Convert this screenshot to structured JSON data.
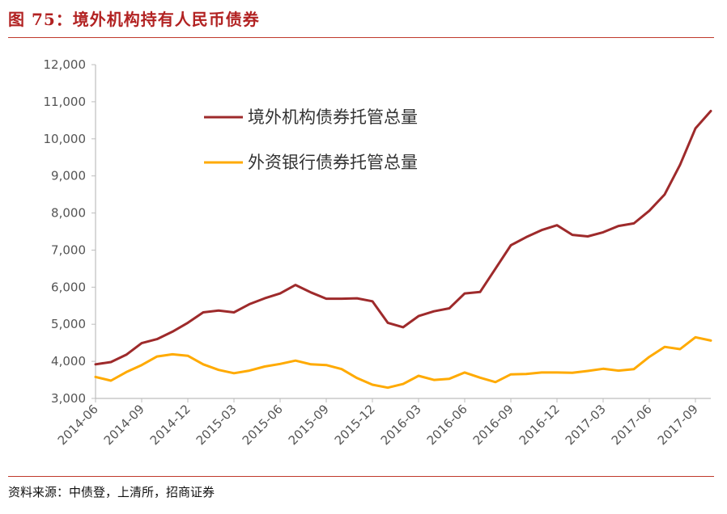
{
  "header": {
    "title": "图 75：境外机构持有人民币债券"
  },
  "footer": {
    "source": "资料来源：中债登，上清所，招商证券"
  },
  "colors": {
    "series1": "#9e2a2b",
    "series2": "#ffaa00",
    "rule": "#c0392b"
  },
  "chart_data": {
    "type": "line",
    "ylim": [
      3000,
      12000
    ],
    "yticks": [
      "3,000",
      "4,000",
      "5,000",
      "6,000",
      "7,000",
      "8,000",
      "9,000",
      "10,000",
      "11,000",
      "12,000"
    ],
    "ytick_values": [
      3000,
      4000,
      5000,
      6000,
      7000,
      8000,
      9000,
      10000,
      11000,
      12000
    ],
    "xtick_labels": [
      "2014-06",
      "2014-09",
      "2014-12",
      "2015-03",
      "2015-06",
      "2015-09",
      "2015-12",
      "2016-03",
      "2016-06",
      "2016-09",
      "2016-12",
      "2017-03",
      "2017-06",
      "2017-09"
    ],
    "x": [
      "2014-06",
      "2014-07",
      "2014-08",
      "2014-09",
      "2014-10",
      "2014-11",
      "2014-12",
      "2015-01",
      "2015-02",
      "2015-03",
      "2015-04",
      "2015-05",
      "2015-06",
      "2015-07",
      "2015-08",
      "2015-09",
      "2015-10",
      "2015-11",
      "2015-12",
      "2016-01",
      "2016-02",
      "2016-03",
      "2016-04",
      "2016-05",
      "2016-06",
      "2016-07",
      "2016-08",
      "2016-09",
      "2016-10",
      "2016-11",
      "2016-12",
      "2017-01",
      "2017-02",
      "2017-03",
      "2017-04",
      "2017-05",
      "2017-06",
      "2017-07",
      "2017-08",
      "2017-09",
      "2017-10"
    ],
    "series": [
      {
        "name": "境外机构债券托管总量",
        "values": [
          3920,
          3980,
          4180,
          4490,
          4600,
          4800,
          5040,
          5320,
          5370,
          5320,
          5540,
          5700,
          5830,
          6060,
          5860,
          5690,
          5690,
          5700,
          5620,
          5040,
          4920,
          5220,
          5350,
          5430,
          5830,
          5870,
          6500,
          7130,
          7350,
          7540,
          7670,
          7410,
          7370,
          7480,
          7650,
          7720,
          8060,
          8500,
          9300,
          10280,
          10750
        ]
      },
      {
        "name": "外资银行债券托管总量",
        "values": [
          3580,
          3480,
          3710,
          3900,
          4130,
          4190,
          4150,
          3920,
          3770,
          3680,
          3750,
          3860,
          3930,
          4020,
          3920,
          3900,
          3790,
          3550,
          3370,
          3290,
          3390,
          3610,
          3500,
          3530,
          3700,
          3560,
          3440,
          3650,
          3660,
          3700,
          3700,
          3690,
          3740,
          3800,
          3750,
          3790,
          4120,
          4390,
          4330,
          4650,
          4560
        ]
      }
    ],
    "grid": false,
    "legend_position": "top-center"
  }
}
